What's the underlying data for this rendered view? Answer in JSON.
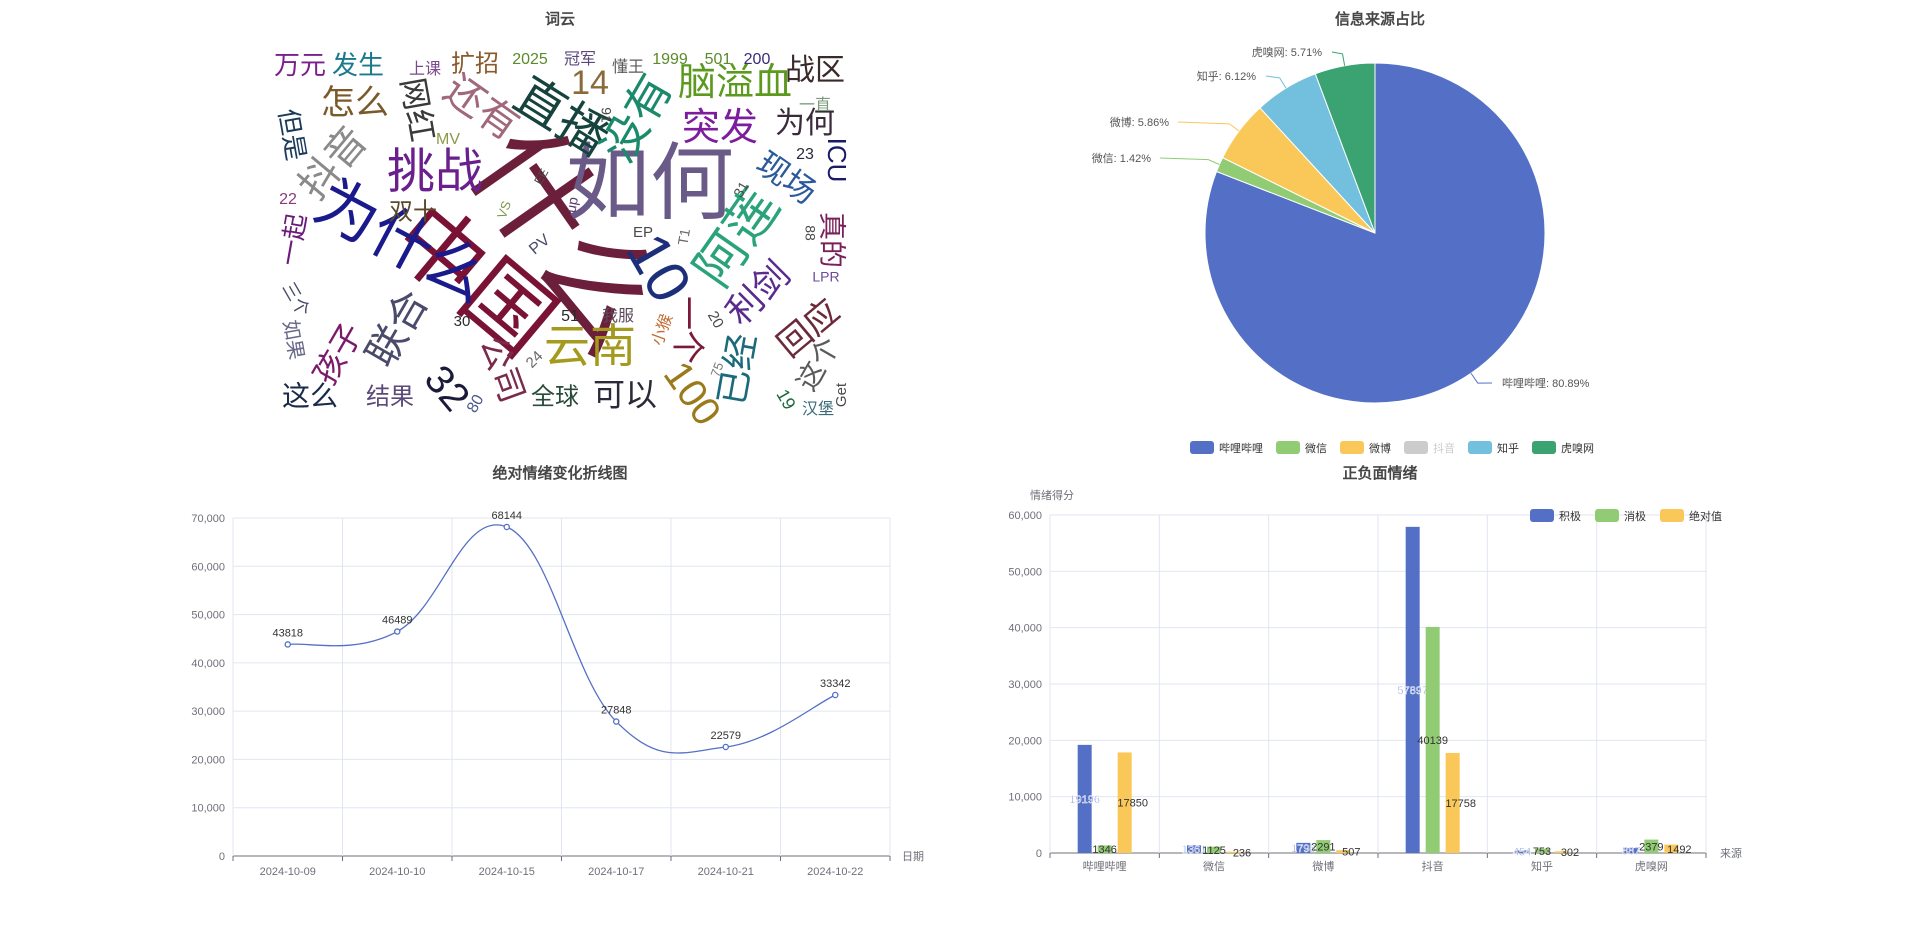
{
  "wordcloud": {
    "title": "词云",
    "words": [
      {
        "text": "什么",
        "color": "#6b1f3a"
      },
      {
        "text": "如何",
        "color": "#6a5a88"
      },
      {
        "text": "中国",
        "color": "#7a1236"
      },
      {
        "text": "为什么",
        "color": "#1a1a8c"
      },
      {
        "text": "10",
        "color": "#1c2f7a"
      },
      {
        "text": "直播",
        "color": "#16433d"
      },
      {
        "text": "挑战",
        "color": "#6a1f8c"
      },
      {
        "text": "没有",
        "color": "#1b8a6a"
      },
      {
        "text": "脑溢血",
        "color": "#5b9a1e"
      },
      {
        "text": "突发",
        "color": "#7b1d9c"
      },
      {
        "text": "阿莲",
        "color": "#2aa37a"
      },
      {
        "text": "云南",
        "color": "#a39a1e"
      },
      {
        "text": "联合",
        "color": "#4a4a6a"
      },
      {
        "text": "还有",
        "color": "#a0687a"
      },
      {
        "text": "抖音",
        "color": "#8a8a8a"
      },
      {
        "text": "网红",
        "color": "#3a3a3a"
      },
      {
        "text": "怎么",
        "color": "#7a5a2a"
      },
      {
        "text": "万元",
        "color": "#7a1f8c"
      },
      {
        "text": "发生",
        "color": "#1a7a8c"
      },
      {
        "text": "扩招",
        "color": "#8a5a2a"
      },
      {
        "text": "14",
        "color": "#8a6a3a"
      },
      {
        "text": "战区",
        "color": "#3a2a2a"
      },
      {
        "text": "为何",
        "color": "#3a2a3a"
      },
      {
        "text": "现场",
        "color": "#2a5a9c"
      },
      {
        "text": "ICU",
        "color": "#1a1a6a"
      },
      {
        "text": "真的",
        "color": "#7a1f5a"
      },
      {
        "text": "利剑",
        "color": "#5a2a8c"
      },
      {
        "text": "回应",
        "color": "#6a2a3a"
      },
      {
        "text": "这个",
        "color": "#5a5a5a"
      },
      {
        "text": "已经",
        "color": "#1a6a7a"
      },
      {
        "text": "100",
        "color": "#9a7a1a"
      },
      {
        "text": "一个",
        "color": "#7a1a3a"
      },
      {
        "text": "可以",
        "color": "#2a2a3a"
      },
      {
        "text": "全球",
        "color": "#2a4a3a"
      },
      {
        "text": "公司",
        "color": "#7a2a4a"
      },
      {
        "text": "32",
        "color": "#1a1a3a"
      },
      {
        "text": "孩子",
        "color": "#7a1a6a"
      },
      {
        "text": "结果",
        "color": "#5a4a7a"
      },
      {
        "text": "这么",
        "color": "#1a2a4a"
      },
      {
        "text": "一起",
        "color": "#6a1a7a"
      },
      {
        "text": "但是",
        "color": "#1a3a5a"
      },
      {
        "text": "双十",
        "color": "#5a4a2a"
      },
      {
        "text": "如果",
        "color": "#6a6a8a"
      },
      {
        "text": "三个",
        "color": "#4a4a6a"
      },
      {
        "text": "冠军",
        "color": "#5a4a7a"
      },
      {
        "text": "懂王",
        "color": "#5a5a5a"
      },
      {
        "text": "一直",
        "color": "#7a9a7a"
      },
      {
        "text": "上课",
        "color": "#7a4a8a"
      },
      {
        "text": "我服",
        "color": "#5a4a5a"
      },
      {
        "text": "小猴",
        "color": "#c06a30"
      },
      {
        "text": "汉堡",
        "color": "#3a6a7a"
      },
      {
        "text": "LPR",
        "color": "#6a4a9a"
      },
      {
        "text": "Get",
        "color": "#4a4a4a"
      },
      {
        "text": "MV",
        "color": "#8a9a4a"
      },
      {
        "text": "PV",
        "color": "#4a4a6a"
      },
      {
        "text": "EP",
        "color": "#4a4a4a"
      },
      {
        "text": "T1",
        "color": "#6a6a6a"
      },
      {
        "text": "up",
        "color": "#5a3a6a"
      },
      {
        "text": "VS",
        "color": "#7a9a4a"
      },
      {
        "text": "2025",
        "color": "#5a8a2a"
      },
      {
        "text": "1999",
        "color": "#5a8a2a"
      },
      {
        "text": "501",
        "color": "#5a8a2a"
      },
      {
        "text": "200",
        "color": "#3a2a7a"
      },
      {
        "text": "23",
        "color": "#2a2a3a"
      },
      {
        "text": "22",
        "color": "#8a3a7a"
      },
      {
        "text": "31",
        "color": "#4a4a4a"
      },
      {
        "text": "88",
        "color": "#4a4a4a"
      },
      {
        "text": "91",
        "color": "#4a4a4a"
      },
      {
        "text": "51",
        "color": "#2a2a2a"
      },
      {
        "text": "30",
        "color": "#2a2a2a"
      },
      {
        "text": "24",
        "color": "#6a6a6a"
      },
      {
        "text": "20",
        "color": "#4a4a4a"
      },
      {
        "text": "75",
        "color": "#7a7a7a"
      },
      {
        "text": "19",
        "color": "#1a6a3a"
      },
      {
        "text": "80",
        "color": "#4a5a8a"
      },
      {
        "text": "EE",
        "color": "#4a4a4a"
      }
    ]
  },
  "pie": {
    "title": "信息来源占比",
    "legend": [
      {
        "name": "哔哩哔哩",
        "color": "#5470c6",
        "active": true
      },
      {
        "name": "微信",
        "color": "#91cc75",
        "active": true
      },
      {
        "name": "微博",
        "color": "#fac858",
        "active": true
      },
      {
        "name": "抖音",
        "color": "#cccccc",
        "active": false
      },
      {
        "name": "知乎",
        "color": "#73c0de",
        "active": true
      },
      {
        "name": "虎嗅网",
        "color": "#3ba272",
        "active": true
      }
    ]
  },
  "line": {
    "title": "绝对情绪变化折线图",
    "color": "#5470c6"
  },
  "bar": {
    "title": "正负面情绪",
    "legend_colors": {
      "积极": "#5470c6",
      "消极": "#91cc75",
      "绝对值": "#fac858"
    }
  },
  "chart_data": [
    {
      "type": "pie",
      "title": "信息来源占比",
      "slices": [
        {
          "name": "哔哩哔哩",
          "value": 80.89,
          "label": "哔哩哔哩: 80.89%"
        },
        {
          "name": "微信",
          "value": 1.42,
          "label": "微信: 1.42%"
        },
        {
          "name": "微博",
          "value": 5.86,
          "label": "微博: 5.86%"
        },
        {
          "name": "知乎",
          "value": 6.12,
          "label": "知乎: 6.12%"
        },
        {
          "name": "虎嗅网",
          "value": 5.71,
          "label": "虎嗅网: 5.71%"
        }
      ],
      "legend": [
        "哔哩哔哩",
        "微信",
        "微博",
        "抖音",
        "知乎",
        "虎嗅网"
      ],
      "legend_placement": "bottom"
    },
    {
      "type": "line",
      "title": "绝对情绪变化折线图",
      "xlabel": "日期",
      "ylabel": "",
      "categories": [
        "2024-10-09",
        "2024-10-10",
        "2024-10-15",
        "2024-10-17",
        "2024-10-21",
        "2024-10-22"
      ],
      "values": [
        43818,
        46489,
        68144,
        27848,
        22579,
        33342
      ],
      "ylim": [
        0,
        70000
      ],
      "yticks": [
        "0",
        "10,000",
        "20,000",
        "30,000",
        "40,000",
        "50,000",
        "60,000",
        "70,000"
      ],
      "grid": true,
      "smooth": true
    },
    {
      "type": "bar",
      "title": "正负面情绪",
      "xlabel": "来源",
      "ylabel": "情绪得分",
      "categories": [
        "哔哩哔哩",
        "微信",
        "微博",
        "抖音",
        "知乎",
        "虎嗅网"
      ],
      "series": [
        {
          "name": "积极",
          "values": [
            19196,
            1361,
            1798,
            57897,
            454,
            887
          ],
          "labels": [
            "19196",
            "1361",
            "1798",
            "57897",
            "454",
            "887"
          ]
        },
        {
          "name": "消极",
          "values": [
            1346,
            1125,
            2291,
            40139,
            753,
            2379
          ],
          "labels": [
            "1346",
            "1125",
            "2291",
            "40139",
            "753",
            "2379"
          ]
        },
        {
          "name": "绝对值",
          "values": [
            17850,
            236,
            507,
            17758,
            302,
            1492
          ],
          "labels": [
            "17850",
            "236",
            "507",
            "17758",
            "302",
            "1492"
          ]
        }
      ],
      "ylim": [
        0,
        60000
      ],
      "yticks": [
        "0",
        "10,000",
        "20,000",
        "30,000",
        "40,000",
        "50,000",
        "60,000"
      ],
      "legend_placement": "top-right",
      "grid": true
    }
  ]
}
